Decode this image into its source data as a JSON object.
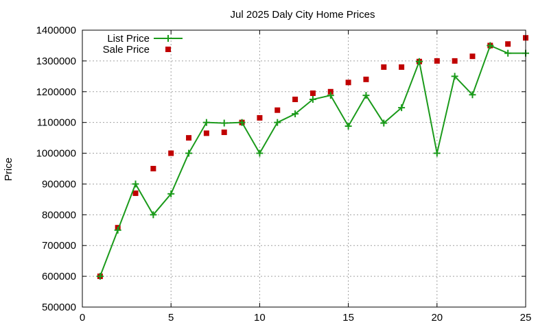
{
  "chart_data": {
    "type": "line",
    "title": "Jul 2025 Daly City Home Prices",
    "xlabel": "",
    "ylabel": "Price",
    "xlim": [
      0,
      25
    ],
    "ylim": [
      500000,
      1400000
    ],
    "xticks": [
      "0",
      "5",
      "10",
      "15",
      "20",
      "25"
    ],
    "yticks": [
      "500000",
      "600000",
      "700000",
      "800000",
      "900000",
      "1000000",
      "1100000",
      "1200000",
      "1300000",
      "1400000"
    ],
    "grid": true,
    "legend_position": "top-left",
    "series": [
      {
        "name": "List Price",
        "style": "line-plus",
        "color": "#1a9a1a",
        "x": [
          1,
          2,
          3,
          4,
          5,
          6,
          7,
          8,
          9,
          10,
          11,
          12,
          13,
          14,
          15,
          16,
          17,
          18,
          19,
          20,
          21,
          22,
          23,
          24,
          25
        ],
        "y": [
          600000,
          750000,
          900000,
          800000,
          868000,
          1000000,
          1100000,
          1098000,
          1100000,
          1000000,
          1100000,
          1128000,
          1175000,
          1188000,
          1088000,
          1188000,
          1098000,
          1148000,
          1298000,
          1000000,
          1250000,
          1190000,
          1350000,
          1325000,
          1325000
        ]
      },
      {
        "name": "Sale Price",
        "style": "squares",
        "color": "#c00000",
        "x": [
          1,
          2,
          3,
          4,
          5,
          6,
          7,
          8,
          9,
          10,
          11,
          12,
          13,
          14,
          15,
          16,
          17,
          18,
          19,
          20,
          21,
          22,
          23,
          24,
          25
        ],
        "y": [
          600000,
          758000,
          870000,
          950000,
          1000000,
          1050000,
          1065000,
          1068000,
          1100000,
          1115000,
          1140000,
          1175000,
          1195000,
          1200000,
          1230000,
          1240000,
          1280000,
          1280000,
          1298000,
          1300000,
          1300000,
          1315000,
          1350000,
          1355000,
          1375000
        ]
      }
    ]
  }
}
